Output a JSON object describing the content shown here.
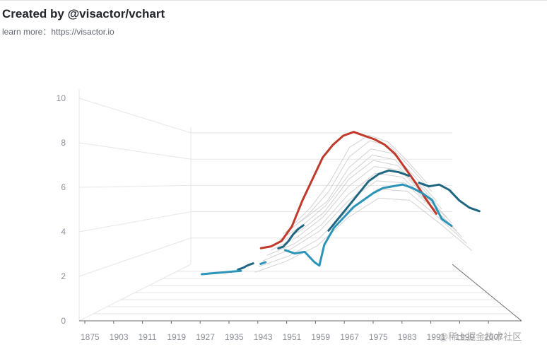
{
  "header": {
    "title": "Created by @visactor/vchart",
    "subtitle": "learn more：https://visactor.io"
  },
  "watermark": "@稀土掘金技术社区",
  "chart_data": {
    "type": "line",
    "title": "Created by @visactor/vchart",
    "subtitle": "learn more：https://visactor.io",
    "style": "3d-perspective",
    "xlabel": "",
    "ylabel": "",
    "xlim": [
      1875,
      2015
    ],
    "ylim": [
      0,
      10
    ],
    "grid": true,
    "legend": "none",
    "x_tick_labels": [
      "1875",
      "1903",
      "1911",
      "1919",
      "1927",
      "1935",
      "1943",
      "1951",
      "1959",
      "1967",
      "1975",
      "1983",
      "1991",
      "1999",
      "2007"
    ],
    "y_tick_labels": [
      "0",
      "2",
      "4",
      "6",
      "8",
      "10"
    ],
    "colors": {
      "red": "#c0392b",
      "darkblue": "#1f6680",
      "lightblue": "#2b94b8",
      "background_series": "#d2d2d2",
      "grid": "#e6e6e6",
      "axis": "#6f6f6f"
    },
    "series": [
      {
        "color": "red",
        "x": [
          1926,
          1930,
          1934,
          1938,
          1942,
          1946,
          1950,
          1954,
          1958,
          1962,
          1966,
          1970,
          1974,
          1978,
          1982,
          1986,
          1990,
          1994
        ],
        "y": [
          2.6,
          2.7,
          3.0,
          3.8,
          5.2,
          6.4,
          7.6,
          8.3,
          8.8,
          9.0,
          8.8,
          8.6,
          8.3,
          7.8,
          7.0,
          6.2,
          5.3,
          4.5
        ]
      },
      {
        "color": "darkblue",
        "segments": [
          {
            "x": [
              1916,
              1918,
              1920,
              1922
            ],
            "y": [
              1.3,
              1.4,
              1.55,
              1.65
            ]
          },
          {
            "x": [
              1932,
              1934,
              1936,
              1938,
              1940,
              1942
            ],
            "y": [
              2.5,
              2.6,
              2.9,
              3.3,
              3.6,
              3.8
            ]
          },
          {
            "x": [
              1952,
              1956,
              1960,
              1964,
              1968,
              1972,
              1976,
              1980,
              1984
            ],
            "y": [
              3.5,
              4.2,
              4.9,
              5.6,
              6.3,
              6.7,
              6.9,
              6.8,
              6.6
            ]
          },
          {
            "x": [
              1988,
              1992,
              1996,
              2000,
              2004,
              2008,
              2012
            ],
            "y": [
              6.2,
              6.0,
              6.1,
              5.8,
              5.2,
              4.8,
              4.6
            ]
          }
        ]
      },
      {
        "color": "lightblue",
        "segments": [
          {
            "x": [
              1900,
              1904,
              1908,
              1912,
              1916
            ],
            "y": [
              0.9,
              0.95,
              1.0,
              1.05,
              1.1
            ]
          },
          {
            "x": [
              1924,
              1926
            ],
            "y": [
              1.5,
              1.6
            ]
          },
          {
            "x": [
              1934,
              1938,
              1942,
              1946,
              1948,
              1950,
              1954,
              1958,
              1962,
              1966,
              1970,
              1974,
              1978,
              1982,
              1986,
              1990,
              1994,
              1998,
              2002
            ],
            "y": [
              2.3,
              2.1,
              2.2,
              1.6,
              1.4,
              2.6,
              3.6,
              4.2,
              4.8,
              5.2,
              5.6,
              5.9,
              6.0,
              6.1,
              5.9,
              5.6,
              5.2,
              4.1,
              3.7
            ]
          }
        ]
      },
      {
        "color": "background_series",
        "x": [
          1930,
          1940,
          1950,
          1960,
          1970,
          1980,
          1990,
          2000
        ],
        "y": [
          3.0,
          4.4,
          6.3,
          8.8,
          9.7,
          9.2,
          7.8,
          6.2
        ]
      },
      {
        "color": "background_series",
        "x": [
          1930,
          1940,
          1950,
          1960,
          1970,
          1980,
          1990,
          2000
        ],
        "y": [
          2.8,
          4.0,
          5.6,
          8.0,
          9.1,
          8.7,
          7.2,
          5.6
        ]
      },
      {
        "color": "background_series",
        "x": [
          1930,
          1940,
          1950,
          1960,
          1970,
          1980,
          1990,
          2000
        ],
        "y": [
          2.9,
          3.9,
          5.0,
          7.2,
          8.4,
          8.1,
          6.6,
          5.0
        ]
      },
      {
        "color": "background_series",
        "x": [
          1930,
          1940,
          1950,
          1960,
          1970,
          1980,
          1990,
          2000
        ],
        "y": [
          2.7,
          3.6,
          4.8,
          6.7,
          7.9,
          7.6,
          6.1,
          4.6
        ]
      },
      {
        "color": "background_series",
        "x": [
          1930,
          1940,
          1950,
          1960,
          1970,
          1980,
          1990,
          2000
        ],
        "y": [
          2.6,
          3.4,
          4.5,
          6.4,
          7.5,
          7.2,
          5.7,
          4.2
        ]
      },
      {
        "color": "background_series",
        "x": [
          1930,
          1940,
          1950,
          1960,
          1970,
          1980,
          1990,
          2000
        ],
        "y": [
          2.5,
          3.2,
          4.3,
          6.0,
          7.1,
          6.9,
          5.4,
          4.0
        ]
      },
      {
        "color": "background_series",
        "x": [
          1930,
          1940,
          1950,
          1960,
          1970,
          1980,
          1990,
          2000
        ],
        "y": [
          2.4,
          3.0,
          4.0,
          5.6,
          6.7,
          6.5,
          5.1,
          3.7
        ]
      },
      {
        "color": "background_series",
        "x": [
          1930,
          1940,
          1950,
          1960,
          1970,
          1980,
          1990,
          2000
        ],
        "y": [
          2.3,
          2.9,
          3.8,
          5.3,
          6.3,
          6.2,
          4.9,
          3.5
        ]
      },
      {
        "color": "background_series",
        "x": [
          1930,
          1940,
          1950,
          1960,
          1970,
          1980,
          1990,
          2000
        ],
        "y": [
          2.2,
          2.7,
          3.5,
          4.9,
          5.9,
          5.8,
          4.6,
          3.3
        ]
      },
      {
        "color": "background_series",
        "x": [
          1930,
          1940,
          1950,
          1960,
          1970,
          1980,
          1990,
          2000
        ],
        "y": [
          2.1,
          2.6,
          3.3,
          4.6,
          5.5,
          5.4,
          4.3,
          3.1
        ]
      }
    ]
  }
}
